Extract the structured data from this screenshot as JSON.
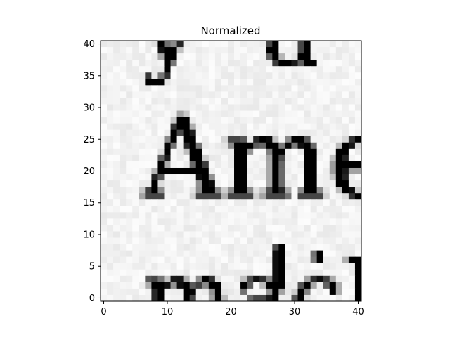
{
  "chart_data": {
    "type": "heatmap",
    "title": "Normalized",
    "xlabel": "",
    "ylabel": "",
    "colormap": "gray",
    "x_range": [
      -0.5,
      40.5
    ],
    "y_range": [
      40.5,
      -0.5
    ],
    "x_ticks": [
      0,
      10,
      20,
      30,
      40
    ],
    "y_ticks": [
      0,
      5,
      10,
      15,
      20,
      25,
      30,
      35,
      40
    ],
    "image_size": [
      41,
      41
    ],
    "highlight_box": {
      "x0": 15,
      "y0": 15,
      "x1": 24,
      "y1": 24,
      "color": "#e0191c"
    },
    "depicted_text": [
      "y",
      "a",
      "Ameri",
      "machin"
    ]
  }
}
